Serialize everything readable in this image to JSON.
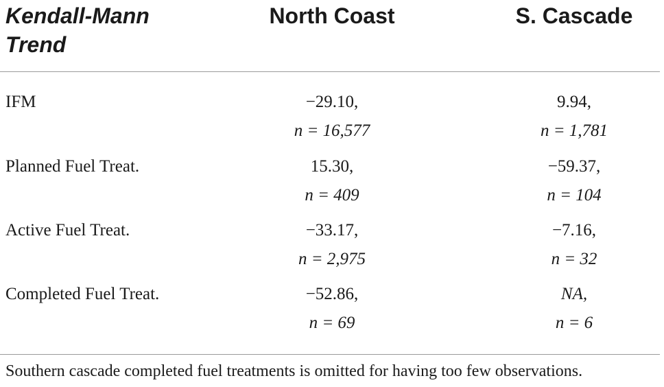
{
  "header": {
    "col1": "Kendall-Mann Trend",
    "col2": "North Coast",
    "col3": "S. Cascade"
  },
  "rows": [
    {
      "label": "IFM",
      "north_value": "−29.10,",
      "north_n": "n = 16,577",
      "south_value": "9.94,",
      "south_n": "n = 1,781"
    },
    {
      "label": "Planned Fuel Treat.",
      "north_value": "15.30,",
      "north_n": "n = 409",
      "south_value": "−59.37,",
      "south_n": "n = 104"
    },
    {
      "label": "Active Fuel Treat.",
      "north_value": "−33.17,",
      "north_n": "n = 2,975",
      "south_value": "−7.16,",
      "south_n": "n = 32"
    },
    {
      "label": "Completed Fuel Treat.",
      "north_value": "−52.86,",
      "north_n": "n = 69",
      "south_value": "NA,",
      "south_n": "n = 6"
    }
  ],
  "footnote": "Southern cascade completed fuel treatments is omitted for having too few observations."
}
